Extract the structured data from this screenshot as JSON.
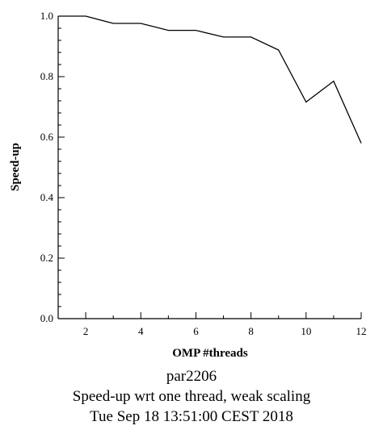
{
  "chart_data": {
    "type": "line",
    "xlabel": "OMP #threads",
    "ylabel": "Speed-up",
    "xlim": [
      1,
      12
    ],
    "ylim": [
      0,
      1
    ],
    "x_ticks": [
      2,
      4,
      6,
      8,
      10,
      12
    ],
    "y_ticks": [
      0.0,
      0.2,
      0.4,
      0.6,
      0.8,
      1.0
    ],
    "y_tick_labels": [
      "0.0",
      "0.2",
      "0.4",
      "0.6",
      "0.8",
      "1.0"
    ],
    "grid": false,
    "series": [
      {
        "x": [
          1,
          2,
          3,
          4,
          5,
          6,
          7,
          8,
          9,
          10,
          11,
          12
        ],
        "values": [
          1.0,
          1.0,
          0.976,
          0.976,
          0.953,
          0.953,
          0.931,
          0.931,
          0.888,
          0.716,
          0.785,
          0.58
        ]
      }
    ]
  },
  "captions": {
    "line1": "par2206",
    "line2": "Speed-up wrt one thread, weak scaling",
    "line3": "Tue Sep 18 13:51:00 CEST 2018"
  },
  "colors": {
    "line": "#000000",
    "axis": "#000000",
    "background": "#ffffff"
  }
}
